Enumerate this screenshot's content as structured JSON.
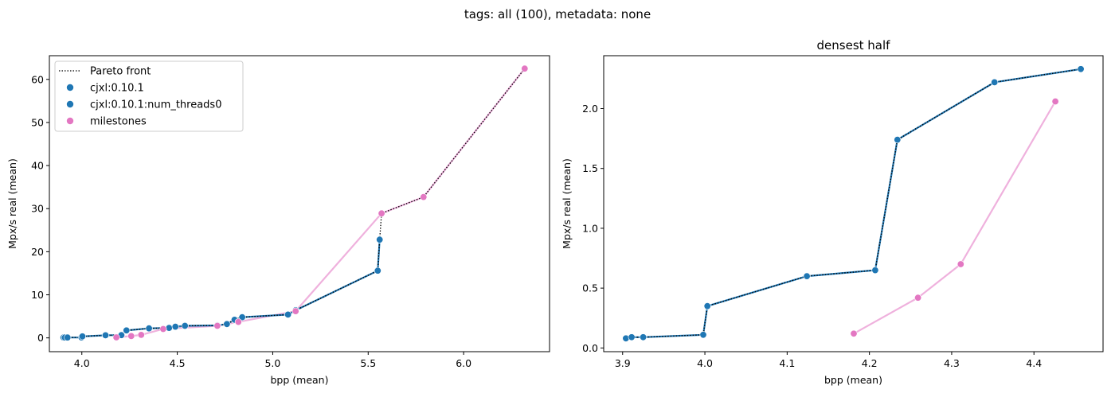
{
  "suptitle": "tags: all (100), metadata: none",
  "colors": {
    "blue": "#1f77b4",
    "pink": "#e377c2",
    "pink_line": "#efb1dd",
    "front": "#000000"
  },
  "chart_data": [
    {
      "type": "line",
      "title": "",
      "xlabel": "bpp (mean)",
      "ylabel": "Mpx/s real (mean)",
      "xlim": [
        3.83,
        6.45
      ],
      "ylim": [
        -3.2,
        65.5
      ],
      "xticks": [
        "4.0",
        "4.5",
        "5.0",
        "5.5",
        "6.0"
      ],
      "yticks": [
        "0",
        "10",
        "20",
        "30",
        "40",
        "50",
        "60"
      ],
      "legend": {
        "placement": "top-left",
        "entries": [
          "Pareto front",
          "cjxl:0.10.1",
          "cjxl:0.10.1:num_threads0",
          "milestones"
        ]
      },
      "series": [
        {
          "name": "cjxl:0.10.1",
          "color": "blue",
          "points": [
            [
              3.904,
              0.08
            ],
            [
              3.911,
              0.09
            ],
            [
              3.925,
              0.09
            ],
            [
              3.998,
              0.11
            ],
            [
              4.003,
              0.35
            ],
            [
              4.124,
              0.6
            ],
            [
              4.207,
              0.65
            ],
            [
              4.234,
              1.74
            ],
            [
              4.352,
              2.22
            ],
            [
              4.457,
              2.33
            ],
            [
              4.49,
              2.6
            ],
            [
              4.54,
              2.8
            ],
            [
              4.71,
              2.9
            ],
            [
              4.76,
              3.2
            ],
            [
              4.8,
              4.2
            ],
            [
              4.84,
              4.8
            ],
            [
              5.08,
              5.4
            ],
            [
              5.12,
              6.4
            ],
            [
              5.55,
              15.6
            ]
          ]
        },
        {
          "name": "cjxl:0.10.1:num_threads0",
          "color": "blue",
          "points": [
            [
              3.904,
              0.08
            ],
            [
              3.911,
              0.09
            ],
            [
              3.925,
              0.09
            ],
            [
              3.998,
              0.11
            ],
            [
              4.003,
              0.35
            ],
            [
              4.124,
              0.6
            ],
            [
              4.207,
              0.65
            ],
            [
              4.234,
              1.74
            ],
            [
              4.352,
              2.22
            ],
            [
              4.457,
              2.33
            ],
            [
              4.49,
              2.6
            ],
            [
              4.54,
              2.8
            ],
            [
              4.71,
              2.9
            ],
            [
              4.76,
              3.2
            ],
            [
              4.8,
              4.2
            ],
            [
              4.84,
              4.8
            ],
            [
              5.08,
              5.4
            ],
            [
              5.12,
              6.4
            ],
            [
              5.55,
              15.6
            ],
            [
              5.56,
              22.8
            ]
          ]
        },
        {
          "name": "milestones",
          "color": "pink",
          "points": [
            [
              4.181,
              0.12
            ],
            [
              4.259,
              0.42
            ],
            [
              4.311,
              0.7
            ],
            [
              4.426,
              2.06
            ],
            [
              4.71,
              2.8
            ],
            [
              4.82,
              3.7
            ],
            [
              5.12,
              6.2
            ],
            [
              5.57,
              28.9
            ],
            [
              5.79,
              32.7
            ],
            [
              6.32,
              62.5
            ]
          ]
        },
        {
          "name": "Pareto front",
          "color": "front",
          "style": "dotted",
          "points": [
            [
              3.904,
              0.08
            ],
            [
              3.911,
              0.09
            ],
            [
              3.925,
              0.09
            ],
            [
              3.998,
              0.11
            ],
            [
              4.003,
              0.35
            ],
            [
              4.124,
              0.6
            ],
            [
              4.207,
              0.65
            ],
            [
              4.234,
              1.74
            ],
            [
              4.352,
              2.22
            ],
            [
              4.457,
              2.33
            ],
            [
              4.49,
              2.6
            ],
            [
              4.54,
              2.8
            ],
            [
              4.71,
              2.9
            ],
            [
              4.76,
              3.2
            ],
            [
              4.8,
              4.2
            ],
            [
              4.84,
              4.8
            ],
            [
              5.08,
              5.4
            ],
            [
              5.12,
              6.4
            ],
            [
              5.55,
              15.6
            ],
            [
              5.56,
              22.8
            ],
            [
              5.57,
              28.9
            ],
            [
              5.79,
              32.7
            ],
            [
              6.32,
              62.5
            ]
          ]
        }
      ]
    },
    {
      "type": "line",
      "title": "densest half",
      "xlabel": "bpp (mean)",
      "ylabel": "Mpx/s real (mean)",
      "xlim": [
        3.877,
        4.484
      ],
      "ylim": [
        -0.031,
        2.442
      ],
      "xticks": [
        "3.9",
        "4.0",
        "4.1",
        "4.2",
        "4.3",
        "4.4"
      ],
      "yticks": [
        "0.0",
        "0.5",
        "1.0",
        "1.5",
        "2.0"
      ],
      "series": [
        {
          "name": "cjxl:0.10.1",
          "color": "blue",
          "points": [
            [
              3.904,
              0.08
            ],
            [
              3.911,
              0.09
            ],
            [
              3.925,
              0.09
            ],
            [
              3.998,
              0.11
            ],
            [
              4.003,
              0.35
            ],
            [
              4.124,
              0.6
            ],
            [
              4.207,
              0.65
            ],
            [
              4.234,
              1.74
            ],
            [
              4.352,
              2.22
            ],
            [
              4.457,
              2.33
            ]
          ]
        },
        {
          "name": "cjxl:0.10.1:num_threads0",
          "color": "blue",
          "points": [
            [
              3.904,
              0.08
            ],
            [
              3.911,
              0.09
            ],
            [
              3.925,
              0.09
            ],
            [
              3.998,
              0.11
            ],
            [
              4.003,
              0.35
            ],
            [
              4.124,
              0.6
            ],
            [
              4.207,
              0.65
            ],
            [
              4.234,
              1.74
            ],
            [
              4.352,
              2.22
            ],
            [
              4.457,
              2.33
            ]
          ]
        },
        {
          "name": "milestones",
          "color": "pink",
          "points": [
            [
              4.181,
              0.12
            ],
            [
              4.259,
              0.42
            ],
            [
              4.311,
              0.7
            ],
            [
              4.426,
              2.06
            ]
          ]
        },
        {
          "name": "Pareto front",
          "color": "front",
          "style": "dotted",
          "points": [
            [
              3.904,
              0.08
            ],
            [
              3.911,
              0.09
            ],
            [
              3.925,
              0.09
            ],
            [
              3.998,
              0.11
            ],
            [
              4.003,
              0.35
            ],
            [
              4.124,
              0.6
            ],
            [
              4.207,
              0.65
            ],
            [
              4.234,
              1.74
            ],
            [
              4.352,
              2.22
            ],
            [
              4.457,
              2.33
            ]
          ]
        }
      ]
    }
  ]
}
